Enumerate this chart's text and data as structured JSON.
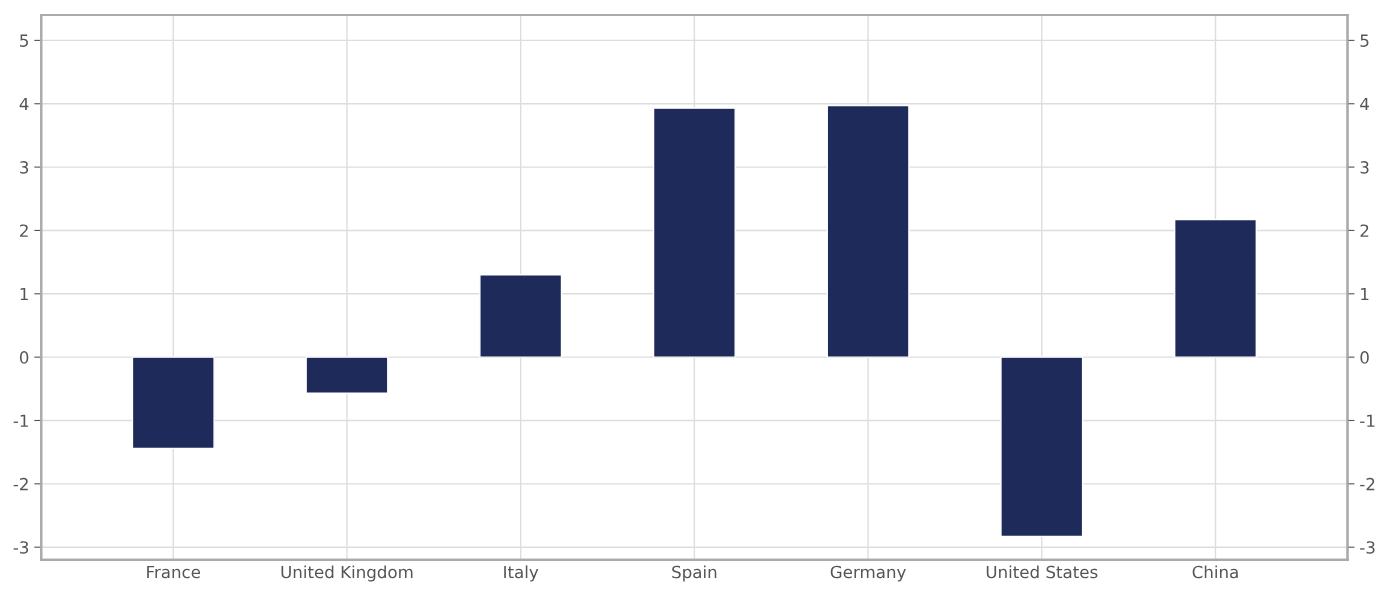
{
  "chart_data": {
    "type": "bar",
    "categories": [
      "France",
      "United Kingdom",
      "Italy",
      "Spain",
      "Germany",
      "United States",
      "China"
    ],
    "values": [
      -1.44,
      -0.57,
      1.3,
      3.93,
      3.97,
      -2.83,
      2.17
    ],
    "color": "#1e2b5a",
    "ylim": [
      -3.2,
      5.4
    ],
    "yticks": [
      -3,
      -2,
      -1,
      0,
      1,
      2,
      3,
      4,
      5
    ],
    "y2lim": [
      -3.2,
      5.4
    ],
    "y2ticks": [
      -3,
      -2,
      -1,
      0,
      1,
      2,
      3,
      4,
      5
    ],
    "grid": true
  }
}
